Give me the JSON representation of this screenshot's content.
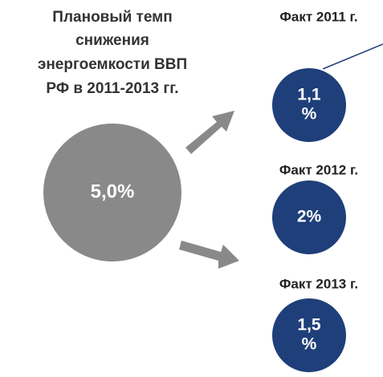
{
  "plan": {
    "title_lines": [
      "Плановый темп",
      "снижения",
      "энергоемкости ВВП",
      "РФ в 2011-2013 гг."
    ],
    "value": "5,0%"
  },
  "facts": [
    {
      "label": "Факт 2011 г.",
      "value_lines": [
        "1,1",
        "%"
      ]
    },
    {
      "label": "Факт 2012 г.",
      "value_lines": [
        "2%"
      ]
    },
    {
      "label": "Факт 2013 г.",
      "value_lines": [
        "1,5",
        "%"
      ]
    }
  ]
}
